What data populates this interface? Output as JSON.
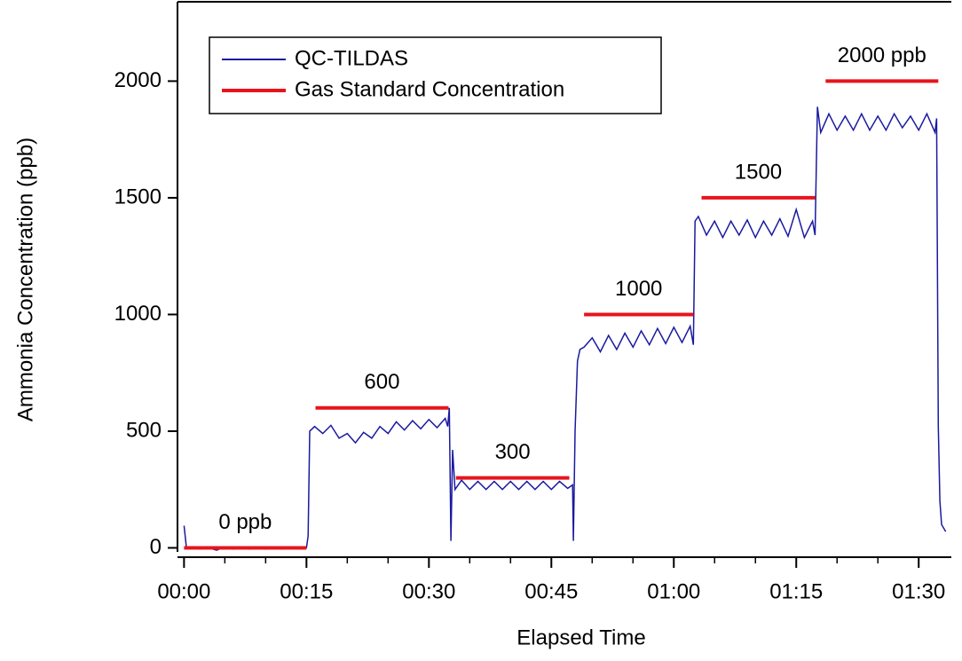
{
  "chart_data": {
    "type": "line",
    "x_label": "Elapsed Time",
    "y_label": "Ammonia Concentration (ppb)",
    "xlim": [
      -0.8,
      94
    ],
    "ylim": [
      -40,
      2340
    ],
    "xticks": [
      {
        "value": 0,
        "label": "00:00"
      },
      {
        "value": 15,
        "label": "00:15"
      },
      {
        "value": 30,
        "label": "00:30"
      },
      {
        "value": 45,
        "label": "00:45"
      },
      {
        "value": 60,
        "label": "01:00"
      },
      {
        "value": 75,
        "label": "01:15"
      },
      {
        "value": 90,
        "label": "01:30"
      }
    ],
    "xminorticks": [
      5,
      10,
      20,
      25,
      35,
      40,
      50,
      55,
      65,
      70,
      80,
      85
    ],
    "yticks": [
      0,
      500,
      1000,
      1500,
      2000
    ],
    "legend": "upper left",
    "series": [
      {
        "name": "QC-TILDAS",
        "color": "#1a1aa0",
        "x": [
          0,
          0.3,
          1,
          2,
          3,
          4,
          5,
          6,
          7,
          8,
          9,
          10,
          11,
          12,
          13,
          14,
          15,
          15.2,
          15.4,
          16,
          17,
          18,
          19,
          20,
          21,
          22,
          23,
          24,
          25,
          26,
          27,
          28,
          29,
          30,
          31,
          32,
          32.3,
          32.5,
          32.7,
          32.9,
          33.2,
          34,
          35,
          36,
          37,
          38,
          39,
          40,
          41,
          42,
          43,
          44,
          45,
          46,
          47,
          47.6,
          47.7,
          47.9,
          48.2,
          48.5,
          49,
          50,
          51,
          52,
          53,
          54,
          55,
          56,
          57,
          58,
          59,
          60,
          61,
          62,
          62.4,
          62.6,
          63,
          64,
          65,
          66,
          67,
          68,
          69,
          70,
          71,
          72,
          73,
          74,
          75,
          76,
          77,
          77.3,
          77.6,
          78,
          79,
          80,
          81,
          82,
          83,
          84,
          85,
          86,
          87,
          88,
          89,
          90,
          91,
          92,
          92.2,
          92.4,
          92.6,
          92.8,
          93.3
        ],
        "values": [
          95,
          0,
          5,
          -5,
          0,
          -10,
          5,
          -5,
          0,
          -5,
          5,
          -5,
          0,
          -5,
          5,
          -5,
          0,
          50,
          500,
          520,
          490,
          525,
          470,
          490,
          450,
          495,
          470,
          520,
          490,
          540,
          505,
          545,
          510,
          550,
          515,
          555,
          520,
          600,
          30,
          420,
          250,
          290,
          250,
          285,
          250,
          285,
          250,
          285,
          250,
          285,
          250,
          285,
          250,
          285,
          255,
          270,
          30,
          500,
          800,
          850,
          860,
          900,
          840,
          910,
          850,
          920,
          860,
          930,
          870,
          940,
          875,
          945,
          880,
          950,
          870,
          1400,
          1420,
          1340,
          1400,
          1330,
          1400,
          1340,
          1405,
          1330,
          1400,
          1340,
          1410,
          1335,
          1450,
          1330,
          1400,
          1340,
          1890,
          1780,
          1860,
          1790,
          1850,
          1790,
          1860,
          1790,
          1850,
          1790,
          1860,
          1800,
          1850,
          1790,
          1860,
          1780,
          1840,
          520,
          200,
          100,
          70
        ]
      },
      {
        "name": "Gas Standard Concentration",
        "color": "#e8141c",
        "x": [
          0,
          15,
          15.5,
          16.1,
          32.4,
          32.8,
          33.3,
          47.2,
          48,
          49,
          62.4,
          63,
          63.4,
          77.3,
          78,
          78.6,
          92.4
        ],
        "values": [
          0,
          0,
          null,
          600,
          600,
          null,
          300,
          300,
          null,
          1000,
          1000,
          null,
          1500,
          1500,
          null,
          2000,
          2000
        ]
      }
    ],
    "annotations": [
      "0 ppb",
      "600",
      "300",
      "1000",
      "1500",
      "2000 ppb"
    ]
  }
}
